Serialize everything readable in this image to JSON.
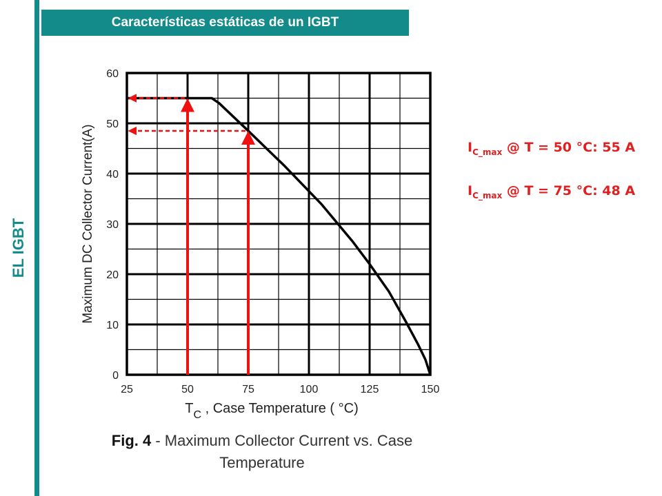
{
  "header": {
    "title": "Características estáticas de un IGBT"
  },
  "sidebar": {
    "label": "EL IGBT",
    "color": "#138b8b"
  },
  "annotations": [
    {
      "prefix": "I",
      "subscript": "C_max",
      "suffix": " @ T = 50 °C: 55 A"
    },
    {
      "prefix": "I",
      "subscript": "C_max",
      "suffix": " @ T = 75 °C: 48 A"
    }
  ],
  "caption": {
    "fig": "Fig. 4",
    "rest_line1": " - Maximum Collector Current vs. Case",
    "rest_line2": "Temperature"
  },
  "chart_data": {
    "type": "line",
    "xlabel_main": "T",
    "xlabel_sub": "C",
    "xlabel_rest": " , Case Temperature ( °C)",
    "ylabel": "Maximum DC Collector Current(A)",
    "xlim": [
      25,
      150
    ],
    "ylim": [
      0,
      60
    ],
    "x_ticks": [
      25,
      50,
      75,
      100,
      125,
      150
    ],
    "y_ticks": [
      0,
      10,
      20,
      30,
      40,
      50,
      60
    ],
    "grid": true,
    "series": [
      {
        "x": [
          25,
          60,
          63,
          75,
          90,
          105,
          118,
          125,
          133,
          140,
          145,
          148,
          150
        ],
        "y": [
          55,
          55,
          54,
          48.5,
          41.5,
          34,
          26.5,
          22,
          16.5,
          10.5,
          6,
          3,
          0
        ],
        "color": "#000000"
      }
    ],
    "highlights": [
      {
        "x": 50,
        "y": 55,
        "color": "#ee1111"
      },
      {
        "x": 75,
        "y": 48.5,
        "color": "#ee1111"
      }
    ]
  }
}
